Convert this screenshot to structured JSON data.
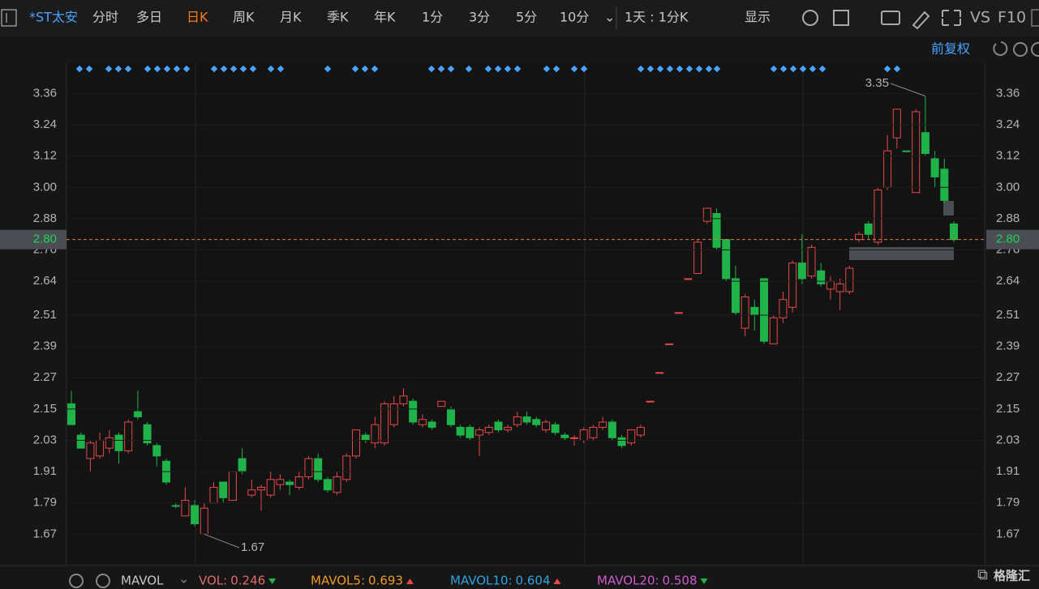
{
  "toolbar": {
    "symbol": "*ST太安",
    "tabs": [
      "分时",
      "多日",
      "日K",
      "周K",
      "月K",
      "季K",
      "年K",
      "1分",
      "3分",
      "5分",
      "10分"
    ],
    "active_tab": "日K",
    "period": "1天 : 1分K",
    "display": "显示",
    "vs": "VS",
    "f10": "F10"
  },
  "adjust": "前复权",
  "chart_data": {
    "type": "candlestick",
    "open": [
      2.17,
      2.05,
      1.96,
      1.97,
      2.0,
      2.05,
      1.99,
      2.14,
      2.09,
      2.01,
      1.95,
      1.78,
      1.74,
      1.78,
      1.67,
      1.79,
      1.87,
      1.8,
      1.96,
      1.82,
      1.84,
      1.82,
      1.86,
      1.87,
      1.85,
      1.89,
      1.96,
      1.88,
      1.83,
      1.88,
      1.97,
      2.05,
      2.02,
      2.02,
      2.09,
      2.17,
      2.18,
      2.09,
      2.1,
      2.16,
      2.15,
      2.08,
      2.08,
      2.05,
      2.06,
      2.1,
      2.07,
      2.09,
      2.12,
      2.11,
      2.07,
      2.09,
      2.05,
      2.04,
      2.03,
      2.04,
      2.08,
      2.1,
      2.04,
      2.02,
      2.05,
      2.18,
      2.29,
      2.4,
      2.52,
      2.65,
      2.67,
      2.87,
      2.9,
      2.8,
      2.65,
      2.46,
      2.54,
      2.65,
      2.4,
      2.5,
      2.54,
      2.71,
      2.66,
      2.68,
      2.61,
      2.6,
      2.6,
      2.8,
      2.86,
      2.79,
      3.0,
      3.19,
      3.14,
      2.98,
      3.21,
      3.11,
      3.07,
      2.86
    ],
    "high": [
      2.22,
      2.06,
      2.03,
      2.06,
      2.07,
      2.06,
      2.11,
      2.22,
      2.1,
      2.02,
      1.96,
      1.79,
      1.85,
      1.8,
      1.79,
      1.87,
      1.87,
      1.91,
      2.0,
      1.88,
      1.86,
      1.91,
      1.9,
      1.88,
      1.91,
      1.97,
      1.98,
      1.89,
      1.91,
      1.98,
      2.07,
      2.06,
      2.12,
      2.18,
      2.2,
      2.23,
      2.19,
      2.13,
      2.11,
      2.18,
      2.16,
      2.09,
      2.09,
      2.08,
      2.09,
      2.11,
      2.09,
      2.14,
      2.14,
      2.12,
      2.11,
      2.1,
      2.06,
      2.05,
      2.08,
      2.09,
      2.12,
      2.11,
      2.05,
      2.07,
      2.09,
      2.18,
      2.29,
      2.4,
      2.52,
      2.65,
      2.8,
      2.92,
      2.92,
      2.8,
      2.7,
      2.59,
      2.57,
      2.65,
      2.51,
      2.6,
      2.72,
      2.82,
      2.78,
      2.71,
      2.66,
      2.65,
      2.7,
      2.83,
      2.87,
      3.0,
      3.2,
      3.3,
      3.14,
      3.3,
      3.35,
      3.14,
      3.11,
      2.87
    ],
    "low": [
      2.09,
      2.0,
      1.91,
      1.96,
      1.98,
      1.94,
      1.98,
      2.11,
      2.01,
      1.93,
      1.86,
      1.77,
      1.74,
      1.7,
      1.67,
      1.79,
      1.79,
      1.8,
      1.9,
      1.81,
      1.76,
      1.81,
      1.84,
      1.82,
      1.84,
      1.88,
      1.87,
      1.83,
      1.82,
      1.87,
      1.96,
      2.02,
      2.0,
      2.01,
      2.08,
      2.16,
      2.09,
      2.08,
      2.07,
      2.16,
      2.08,
      2.04,
      2.03,
      1.97,
      2.05,
      2.06,
      2.06,
      2.08,
      2.09,
      2.08,
      2.06,
      2.05,
      2.03,
      2.01,
      2.02,
      2.03,
      2.07,
      2.03,
      2.0,
      2.01,
      2.04,
      2.18,
      2.29,
      2.4,
      2.52,
      2.65,
      2.67,
      2.86,
      2.76,
      2.64,
      2.51,
      2.43,
      2.45,
      2.4,
      2.4,
      2.48,
      2.52,
      2.63,
      2.65,
      2.62,
      2.57,
      2.53,
      2.59,
      2.79,
      2.8,
      2.78,
      2.99,
      3.15,
      3.14,
      2.98,
      3.12,
      3.0,
      2.94,
      2.79
    ],
    "close": [
      2.09,
      2.0,
      2.02,
      2.03,
      2.04,
      1.99,
      2.1,
      2.12,
      2.02,
      1.97,
      1.87,
      1.78,
      1.8,
      1.71,
      1.77,
      1.85,
      1.81,
      1.91,
      1.91,
      1.84,
      1.85,
      1.88,
      1.88,
      1.86,
      1.89,
      1.96,
      1.88,
      1.84,
      1.89,
      1.97,
      2.07,
      2.03,
      2.09,
      2.17,
      2.17,
      2.2,
      2.1,
      2.11,
      2.08,
      2.18,
      2.09,
      2.05,
      2.04,
      2.07,
      2.08,
      2.07,
      2.08,
      2.12,
      2.1,
      2.09,
      2.1,
      2.06,
      2.04,
      2.04,
      2.07,
      2.08,
      2.1,
      2.04,
      2.01,
      2.07,
      2.08,
      2.18,
      2.29,
      2.4,
      2.52,
      2.65,
      2.79,
      2.92,
      2.77,
      2.65,
      2.52,
      2.58,
      2.51,
      2.41,
      2.5,
      2.57,
      2.71,
      2.65,
      2.77,
      2.63,
      2.64,
      2.63,
      2.69,
      2.82,
      2.82,
      2.99,
      3.14,
      3.3,
      3.14,
      3.29,
      3.13,
      3.04,
      2.95,
      2.8
    ],
    "up_color": "#e8484a",
    "down_color": "#1fb34a",
    "ylim": [
      1.55,
      3.47
    ],
    "yticks": [
      3.36,
      3.24,
      3.12,
      {
        "value": 3,
        "label": "3.00"
      },
      2.88,
      2.76,
      2.64,
      2.51,
      2.39,
      2.27,
      2.15,
      2.03,
      1.91,
      1.79,
      1.67
    ],
    "current_price": {
      "value": 2.8,
      "label": "2.80"
    },
    "high_annotation": 3.35,
    "low_annotation": 1.67
  },
  "indicator_bar": {
    "name": "MAVOL",
    "items": [
      {
        "label": "VOL:",
        "value": 0.246,
        "color": "#e06b6b"
      },
      {
        "label": "MAVOL5:",
        "value": 0.693,
        "color": "#f09a2a"
      },
      {
        "label": "MAVOL10:",
        "value": 0.604,
        "color": "#2fa4e0"
      },
      {
        "label": "MAVOL20:",
        "value": 0.508,
        "color": "#d05ad0"
      }
    ]
  }
}
